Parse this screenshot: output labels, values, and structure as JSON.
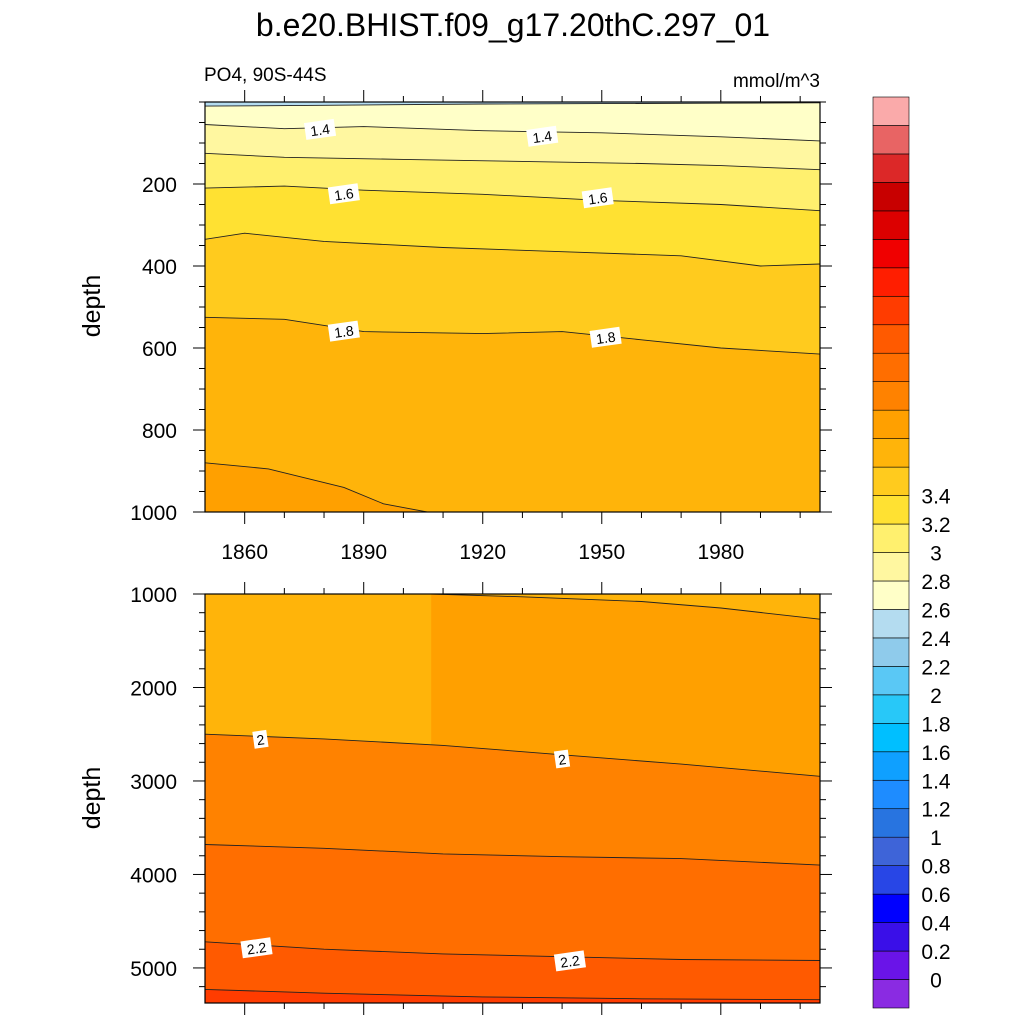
{
  "title": "b.e20.BHIST.f09_g17.20thC.297_01",
  "left_subtitle": "PO4, 90S-44S",
  "right_subtitle": "mmol/m^3",
  "chart_data": [
    {
      "type": "contour",
      "panel": "upper",
      "xlabel": "",
      "ylabel": "depth",
      "x_range": [
        1850,
        2005
      ],
      "ylim": [
        0,
        1000
      ],
      "y_inverted": true,
      "x_ticks": [
        1860,
        1890,
        1920,
        1950,
        1980
      ],
      "y_ticks": [
        200,
        400,
        600,
        800,
        1000
      ],
      "contour_lines": [
        {
          "level": 1.3,
          "points": [
            [
              1850,
              10
            ],
            [
              1880,
              8
            ],
            [
              1920,
              5
            ],
            [
              1950,
              4
            ],
            [
              1980,
              3
            ],
            [
              2005,
              2
            ]
          ]
        },
        {
          "level": 1.4,
          "points": [
            [
              1850,
              55
            ],
            [
              1870,
              65
            ],
            [
              1890,
              60
            ],
            [
              1920,
              70
            ],
            [
              1950,
              75
            ],
            [
              1980,
              85
            ],
            [
              2005,
              95
            ]
          ]
        },
        {
          "level": 1.5,
          "points": [
            [
              1850,
              125
            ],
            [
              1870,
              135
            ],
            [
              1900,
              140
            ],
            [
              1930,
              145
            ],
            [
              1960,
              150
            ],
            [
              1980,
              155
            ],
            [
              2005,
              165
            ]
          ]
        },
        {
          "level": 1.6,
          "points": [
            [
              1850,
              210
            ],
            [
              1870,
              205
            ],
            [
              1890,
              215
            ],
            [
              1920,
              225
            ],
            [
              1950,
              240
            ],
            [
              1980,
              250
            ],
            [
              2005,
              265
            ]
          ]
        },
        {
          "level": 1.7,
          "points": [
            [
              1850,
              335
            ],
            [
              1860,
              320
            ],
            [
              1880,
              340
            ],
            [
              1910,
              355
            ],
            [
              1940,
              365
            ],
            [
              1970,
              375
            ],
            [
              1990,
              400
            ],
            [
              2005,
              395
            ]
          ]
        },
        {
          "level": 1.8,
          "points": [
            [
              1850,
              525
            ],
            [
              1870,
              530
            ],
            [
              1890,
              560
            ],
            [
              1920,
              565
            ],
            [
              1940,
              560
            ],
            [
              1960,
              580
            ],
            [
              1980,
              600
            ],
            [
              2005,
              615
            ]
          ]
        },
        {
          "level": 1.9,
          "points": [
            [
              1850,
              880
            ],
            [
              1866,
              895
            ],
            [
              1885,
              940
            ],
            [
              1895,
              980
            ],
            [
              1906,
              1000
            ]
          ]
        }
      ],
      "line_labels": [
        {
          "text": "1.4",
          "x": 1879,
          "y": 68
        },
        {
          "text": "1.4",
          "x": 1935,
          "y": 85
        },
        {
          "text": "1.6",
          "x": 1885,
          "y": 225
        },
        {
          "text": "1.6",
          "x": 1949,
          "y": 235
        },
        {
          "text": "1.8",
          "x": 1885,
          "y": 560
        },
        {
          "text": "1.8",
          "x": 1951,
          "y": 575
        }
      ]
    },
    {
      "type": "contour",
      "panel": "lower",
      "xlabel": "",
      "ylabel": "depth",
      "x_range": [
        1850,
        2005
      ],
      "ylim": [
        1000,
        5375
      ],
      "y_inverted": true,
      "y_ticks": [
        1000,
        2000,
        3000,
        4000,
        5000
      ],
      "contour_lines": [
        {
          "level": 1.9,
          "points": [
            [
              1907,
              1000
            ],
            [
              1930,
              1030
            ],
            [
              1960,
              1080
            ],
            [
              1980,
              1150
            ],
            [
              2005,
              1270
            ]
          ]
        },
        {
          "level": 2.0,
          "points": [
            [
              1850,
              2500
            ],
            [
              1880,
              2550
            ],
            [
              1910,
              2620
            ],
            [
              1940,
              2720
            ],
            [
              1970,
              2820
            ],
            [
              2005,
              2950
            ]
          ]
        },
        {
          "level": 2.1,
          "points": [
            [
              1850,
              3680
            ],
            [
              1880,
              3720
            ],
            [
              1910,
              3780
            ],
            [
              1940,
              3810
            ],
            [
              1970,
              3830
            ],
            [
              2005,
              3900
            ]
          ]
        },
        {
          "level": 2.2,
          "points": [
            [
              1850,
              4720
            ],
            [
              1880,
              4800
            ],
            [
              1910,
              4850
            ],
            [
              1940,
              4880
            ],
            [
              1970,
              4910
            ],
            [
              2005,
              4920
            ]
          ]
        },
        {
          "level": 2.3,
          "points": [
            [
              1850,
              5230
            ],
            [
              1880,
              5270
            ],
            [
              1920,
              5310
            ],
            [
              1960,
              5330
            ],
            [
              2005,
              5340
            ]
          ]
        }
      ],
      "line_labels": [
        {
          "text": "2",
          "x": 1864,
          "y": 2560
        },
        {
          "text": "2",
          "x": 1940,
          "y": 2770
        },
        {
          "text": "2.2",
          "x": 1863,
          "y": 4790
        },
        {
          "text": "2.2",
          "x": 1942,
          "y": 4930
        }
      ]
    }
  ],
  "colorbar": {
    "levels": [
      "0",
      "0.2",
      "0.4",
      "0.6",
      "0.8",
      "1",
      "1.2",
      "1.4",
      "1.6",
      "1.8",
      "2",
      "2.2",
      "2.4",
      "2.6",
      "2.8",
      "3",
      "3.2",
      "3.4"
    ],
    "colors": [
      "#8A2BE2",
      "#6A14E8",
      "#3A0FE8",
      "#0000FF",
      "#2846E6",
      "#3E64D8",
      "#2874E0",
      "#1E8CFF",
      "#0FA0FF",
      "#00BFFF",
      "#28C8F8",
      "#5AC8F5",
      "#8FCBEB",
      "#B4DCF0",
      "#FFFFC8",
      "#FFF7A0",
      "#FFF06E",
      "#FFE132",
      "#FFCB1E",
      "#FFB40A",
      "#FFA000",
      "#FF8200",
      "#FF6E00",
      "#FF5A00",
      "#FF3C00",
      "#FF1E00",
      "#F00000",
      "#DC0000",
      "#C80000",
      "#DC2828",
      "#E86464",
      "#FAAAAA"
    ]
  }
}
